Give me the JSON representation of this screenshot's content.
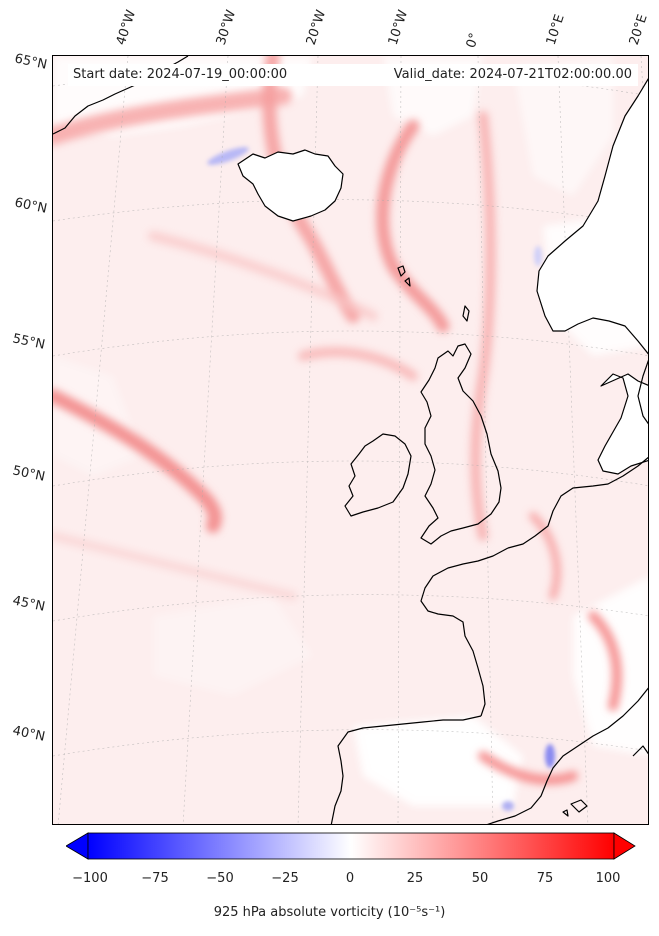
{
  "banner": {
    "start_date": "Start date: 2024-07-19_00:00:00",
    "valid_date": "Valid_date: 2024-07-21T02:00:00.00"
  },
  "lon_labels": [
    "40°W",
    "30°W",
    "20°W",
    "10°W",
    "0°",
    "10°E",
    "20°E"
  ],
  "lat_labels": [
    "65°N",
    "60°N",
    "55°N",
    "50°N",
    "45°N",
    "40°N"
  ],
  "colorbar": {
    "label": "925 hPa absolute vorticity (10⁻⁵s⁻¹)",
    "min": -100,
    "max": 100,
    "ticks": [
      "−100",
      "−75",
      "−50",
      "−25",
      "0",
      "25",
      "50",
      "75",
      "100"
    ],
    "low_color": "#0000ff",
    "mid_color": "#ffffff",
    "high_color": "#ff0000"
  },
  "colors": {
    "background_field": "#fdeeee",
    "land_outline": "#000000"
  }
}
